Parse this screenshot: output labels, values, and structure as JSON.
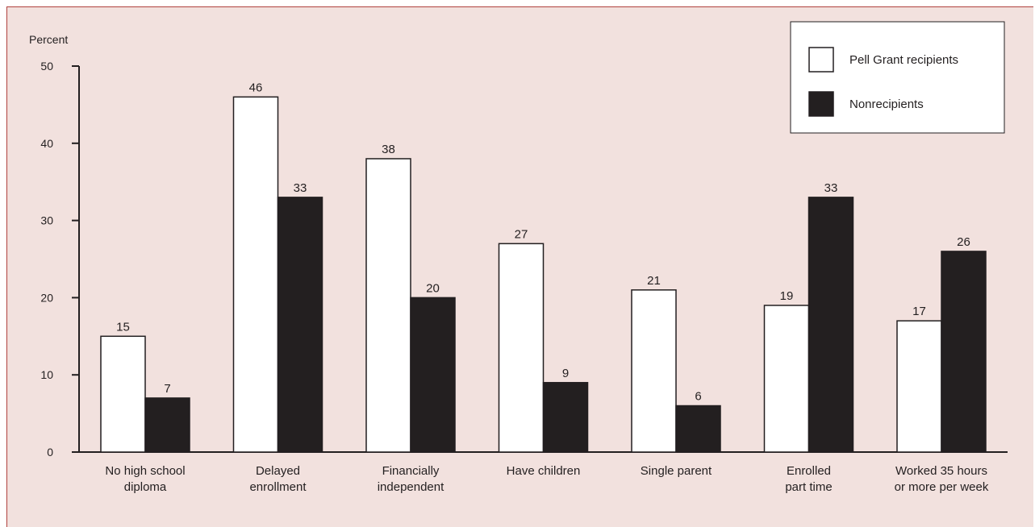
{
  "chart_data": {
    "type": "bar",
    "title": "",
    "ylabel": "Percent",
    "xlabel": "",
    "ylim": [
      0,
      50
    ],
    "yticks": [
      0,
      10,
      20,
      30,
      40,
      50
    ],
    "categories": [
      [
        "No high school",
        "diploma"
      ],
      [
        "Delayed",
        "enrollment"
      ],
      [
        "Financially",
        "independent"
      ],
      [
        "Have children"
      ],
      [
        "Single parent"
      ],
      [
        "Enrolled",
        "part time"
      ],
      [
        "Worked 35 hours",
        "or more per week"
      ]
    ],
    "series": [
      {
        "name": "Pell Grant recipients",
        "values": [
          15,
          46,
          38,
          27,
          21,
          19,
          17
        ],
        "color": "#ffffff"
      },
      {
        "name": "Nonrecipients",
        "values": [
          7,
          33,
          20,
          9,
          6,
          33,
          26
        ],
        "color": "#231f20"
      }
    ],
    "legend_position": "top-right",
    "grid": false
  }
}
